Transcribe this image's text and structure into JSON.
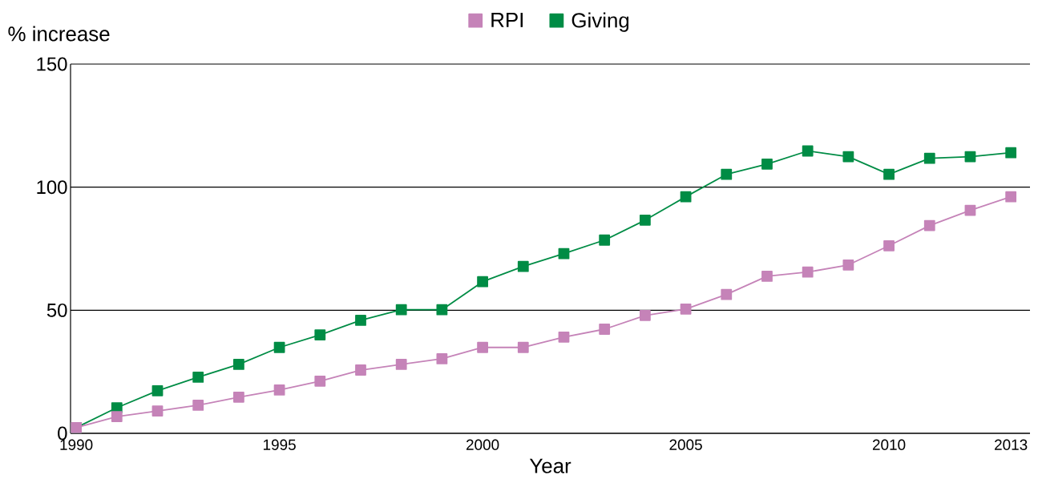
{
  "chart_data": {
    "type": "line",
    "xlabel": "Year",
    "ylabel": "% increase",
    "x": [
      1990,
      1991,
      1992,
      1993,
      1994,
      1995,
      1996,
      1997,
      1998,
      1999,
      2000,
      2001,
      2002,
      2003,
      2004,
      2005,
      2006,
      2007,
      2008,
      2009,
      2010,
      2011,
      2012,
      2013
    ],
    "series": [
      {
        "name": "RPI",
        "color": "#c583b8",
        "values": [
          2.3,
          6.8,
          9.1,
          11.4,
          14.7,
          17.6,
          21.2,
          25.7,
          28,
          30.3,
          34.9,
          34.9,
          39.1,
          42.3,
          47.9,
          50.5,
          56.4,
          63.8,
          65.5,
          68.4,
          76.2,
          84.4,
          90.6,
          96.1
        ]
      },
      {
        "name": "Giving",
        "color": "#008c45",
        "values": [
          2.3,
          10.4,
          17.3,
          22.8,
          28,
          34.9,
          40,
          45.9,
          50.2,
          50.2,
          61.6,
          67.8,
          73,
          78.5,
          86.6,
          96.1,
          105.2,
          109.4,
          114.7,
          112.4,
          105.2,
          111.7,
          112.4,
          114
        ]
      }
    ],
    "xlim": [
      1989.86,
      2013.47
    ],
    "ylim": [
      0,
      150
    ],
    "xticks": [
      1990,
      1995,
      2000,
      2005,
      2010,
      2013
    ],
    "yticks": [
      0,
      50,
      100,
      150
    ],
    "grid": "y",
    "legend": "top",
    "marker": "square",
    "line_style": "solid"
  }
}
